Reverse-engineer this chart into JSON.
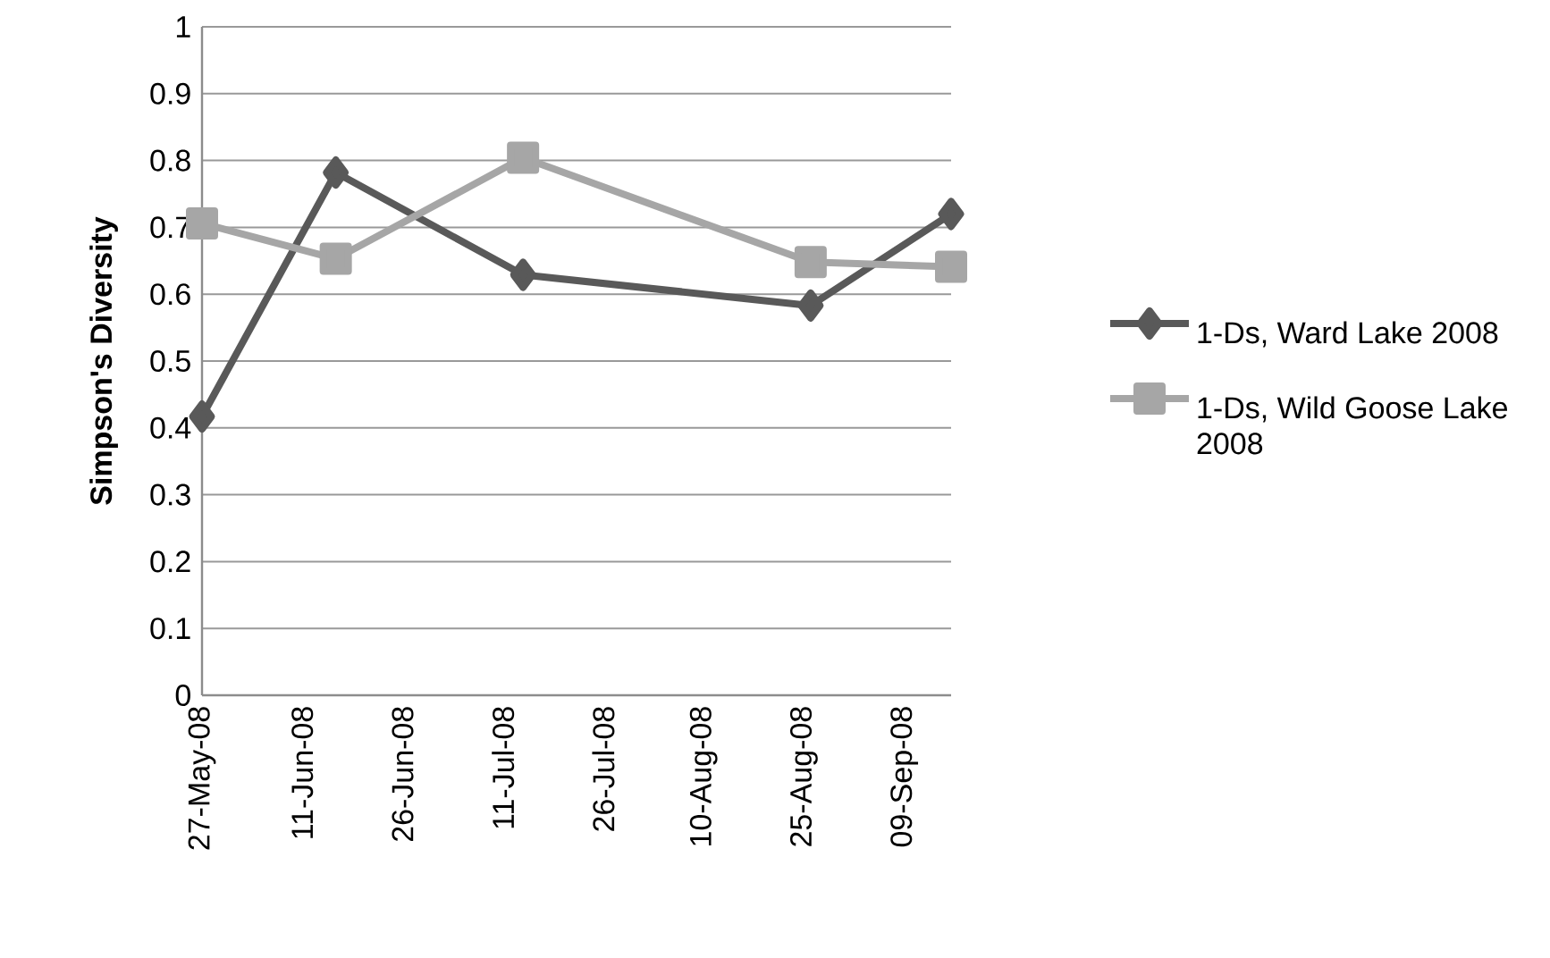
{
  "chart_data": {
    "type": "line",
    "ylabel": "Simpson's  Diversity",
    "x": [
      "2008-05-27",
      "2008-06-16",
      "2008-07-14",
      "2008-08-26",
      "2008-09-16"
    ],
    "series": [
      {
        "name": "1-Ds, Ward Lake 2008",
        "color": "#595959",
        "marker": "diamond",
        "values": [
          0.417,
          0.782,
          0.629,
          0.583,
          0.72
        ]
      },
      {
        "name": "1-Ds, Wild Goose Lake 2008",
        "color": "#a6a6a6",
        "marker": "square",
        "values": [
          0.706,
          0.653,
          0.804,
          0.648,
          0.641
        ]
      }
    ],
    "xlim": [
      "2008-05-27",
      "2008-09-16"
    ],
    "xticks": [
      {
        "value": "2008-05-27",
        "label": "27-May-08"
      },
      {
        "value": "2008-06-11",
        "label": "11-Jun-08"
      },
      {
        "value": "2008-06-26",
        "label": "26-Jun-08"
      },
      {
        "value": "2008-07-11",
        "label": "11-Jul-08"
      },
      {
        "value": "2008-07-26",
        "label": "26-Jul-08"
      },
      {
        "value": "2008-08-10",
        "label": "10-Aug-08"
      },
      {
        "value": "2008-08-25",
        "label": "25-Aug-08"
      },
      {
        "value": "2008-09-09",
        "label": "09-Sep-08"
      }
    ],
    "ylim": [
      0,
      1
    ],
    "yticks": [
      0,
      0.1,
      0.2,
      0.3,
      0.4,
      0.5,
      0.6,
      0.7,
      0.8,
      0.9,
      1
    ],
    "grid": "y",
    "legend": "right",
    "line_style": "solid"
  }
}
